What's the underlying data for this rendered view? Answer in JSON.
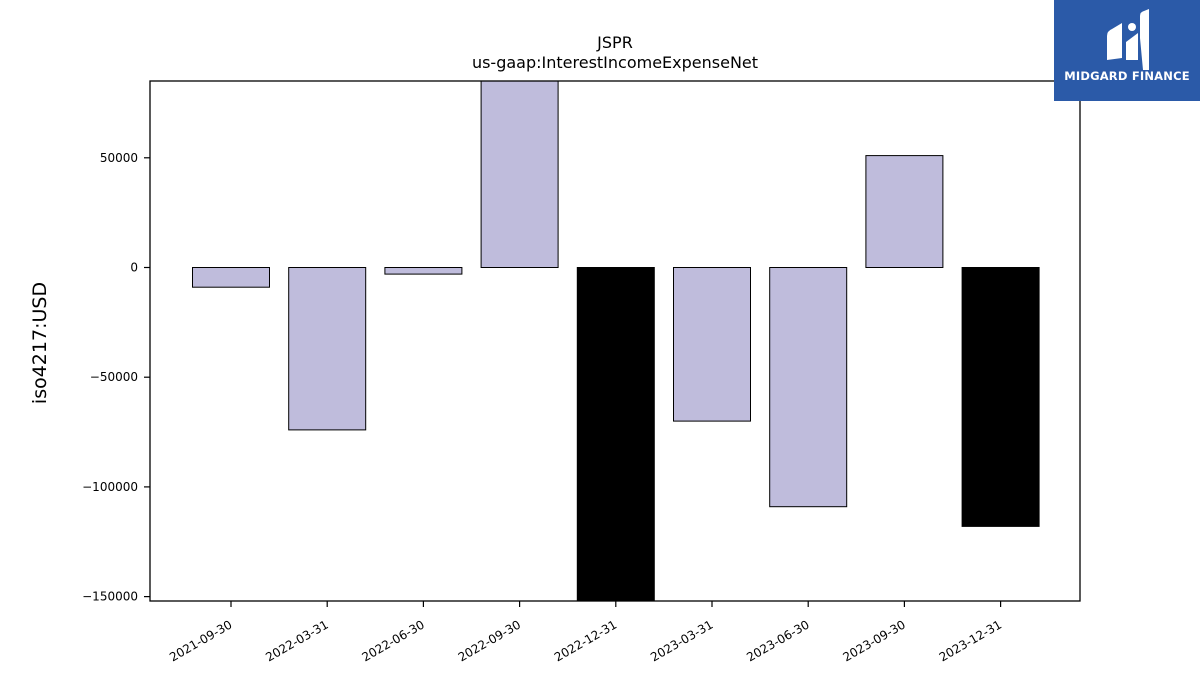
{
  "logo": {
    "text": "MIDGARD FINANCE",
    "icon": "midgard-logo-icon",
    "bg_color": "#2b5aa8"
  },
  "chart_data": {
    "type": "bar",
    "title": "JSPR",
    "subtitle": "us-gaap:InterestIncomeExpenseNet",
    "ylabel": "iso4217:USD",
    "xlabel": "",
    "ylim": [
      -152000,
      85000
    ],
    "yticks": [
      50000,
      0,
      -50000,
      -100000,
      -150000
    ],
    "ytick_labels": [
      "50000",
      "0",
      "−50000",
      "−100000",
      "−150000"
    ],
    "categories": [
      "2021-09-30",
      "2022-03-31",
      "2022-06-30",
      "2022-09-30",
      "2022-12-31",
      "2023-03-31",
      "2023-06-30",
      "2023-09-30",
      "2023-12-31"
    ],
    "values": [
      -9000,
      -74000,
      -3000,
      85000,
      -152000,
      -70000,
      -109000,
      51000,
      -118000
    ],
    "colors": [
      "#bfbcdc",
      "#bfbcdc",
      "#bfbcdc",
      "#bfbcdc",
      "#000000",
      "#bfbcdc",
      "#bfbcdc",
      "#bfbcdc",
      "#000000"
    ],
    "grid": false
  }
}
